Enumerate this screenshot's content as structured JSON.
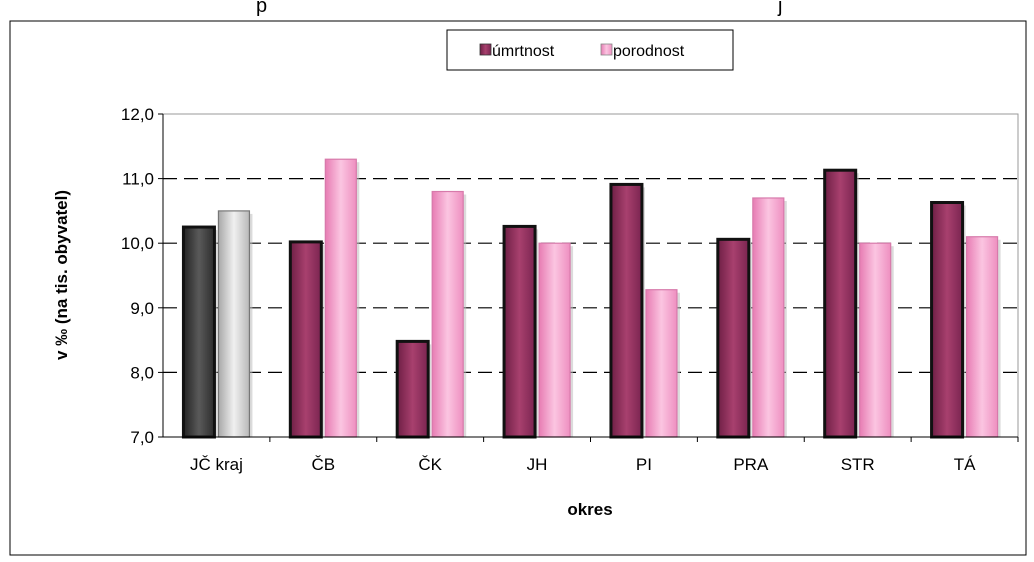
{
  "header_text": "p",
  "header_text_right": "j",
  "chart_data": {
    "type": "bar",
    "categories": [
      "JČ kraj",
      "ČB",
      "ČK",
      "JH",
      "PI",
      "PRA",
      "STR",
      "TÁ"
    ],
    "series": [
      {
        "name": "úmrtnost",
        "values": [
          10.25,
          10.02,
          8.48,
          10.26,
          10.91,
          10.06,
          11.13,
          10.63
        ]
      },
      {
        "name": "porodnost",
        "values": [
          10.5,
          11.3,
          10.8,
          10.0,
          9.28,
          10.7,
          10.0,
          10.1
        ]
      }
    ],
    "title": "",
    "xlabel": "okres",
    "ylabel": "v ‰ (na tis. obyvatel)",
    "ylim": [
      7.0,
      12.0
    ],
    "yticks": [
      "7,0",
      "8,0",
      "9,0",
      "10,0",
      "11,0",
      "12,0"
    ],
    "grid": "dashed horizontal",
    "legend_position": "top-center",
    "colors": {
      "umrtnost": "#8c2d5a",
      "porodnost": "#f39ac8",
      "kraj_umrtnost": "#3a3a3a",
      "kraj_porodnost": "#c8c8c8"
    }
  }
}
